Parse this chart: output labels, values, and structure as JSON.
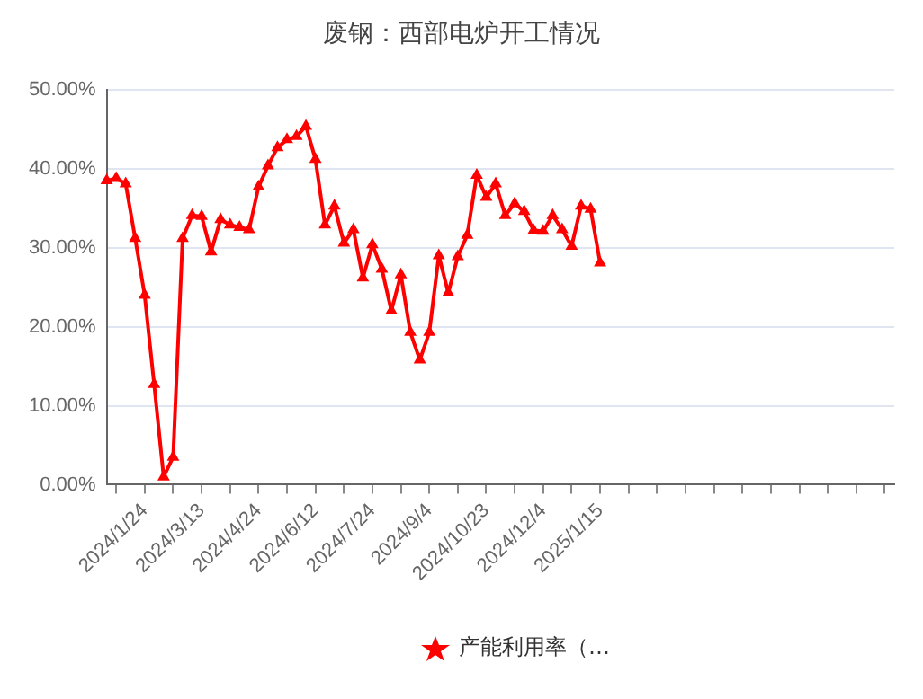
{
  "chart_data": {
    "type": "line",
    "title": "废钢：西部电炉开工情况",
    "categories": [
      null,
      null,
      null,
      null,
      "2024/1/24",
      null,
      null,
      null,
      null,
      null,
      "2024/3/13",
      null,
      null,
      null,
      null,
      null,
      "2024/4/24",
      null,
      null,
      null,
      null,
      null,
      "2024/6/12",
      null,
      null,
      null,
      null,
      null,
      "2024/7/24",
      null,
      null,
      null,
      null,
      null,
      "2024/9/4",
      null,
      null,
      null,
      null,
      null,
      "2024/10/23",
      null,
      null,
      null,
      null,
      null,
      "2024/12/4",
      null,
      null,
      null,
      null,
      null,
      "2025/1/15",
      null,
      null,
      null,
      null,
      null,
      null,
      null,
      null,
      null,
      null,
      null,
      null,
      null,
      null,
      null,
      null,
      null,
      null,
      null,
      null,
      null,
      null,
      null,
      null,
      null,
      null,
      null,
      null,
      null,
      null,
      null
    ],
    "series": [
      {
        "name": "产能利用率（…",
        "color": "#ff0000",
        "values": [
          38.5,
          38.8,
          38.1,
          31.2,
          24.0,
          12.7,
          1.0,
          3.5,
          31.2,
          34.1,
          34.0,
          29.5,
          33.6,
          32.9,
          32.6,
          32.3,
          37.7,
          40.4,
          42.7,
          43.7,
          44.1,
          45.4,
          41.2,
          32.9,
          35.3,
          30.6,
          32.3,
          26.2,
          30.4,
          27.3,
          22.0,
          26.6,
          19.3,
          15.8,
          19.3,
          29.0,
          24.3,
          28.9,
          31.6,
          39.2,
          36.4,
          38.1,
          34.1,
          35.6,
          34.6,
          32.2,
          32.1,
          34.1,
          32.3,
          30.2,
          35.3,
          34.9,
          28.1,
          null,
          null,
          null,
          null,
          null,
          null,
          null,
          null,
          null,
          null,
          null,
          null,
          null,
          null,
          null,
          null,
          null,
          null,
          null,
          null,
          null,
          null,
          null,
          null,
          null,
          null,
          null,
          null,
          null,
          null,
          null
        ]
      }
    ],
    "ylim": [
      0,
      50
    ],
    "yticks": [
      {
        "value": 0,
        "label": "0.00%"
      },
      {
        "value": 10,
        "label": "10.00%"
      },
      {
        "value": 20,
        "label": "20.00%"
      },
      {
        "value": 30,
        "label": "30.00%"
      },
      {
        "value": 40,
        "label": "40.00%"
      },
      {
        "value": 50,
        "label": "50.00%"
      }
    ],
    "grid": "y",
    "legend": "bottom",
    "marker": "triangle",
    "line_style": "solid"
  }
}
